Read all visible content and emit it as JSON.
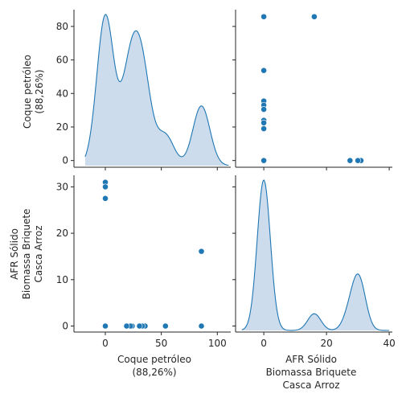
{
  "chart_data": {
    "type": "pairplot",
    "variables": [
      [
        "Coque petróleo",
        "(88,26%)"
      ],
      [
        "AFR Sólido",
        "Biomassa Briquete",
        "Casca Arroz"
      ]
    ],
    "colors": {
      "point": "#1f77b4",
      "kde_line": "#1f77b4",
      "kde_fill": "#c6d8ea"
    },
    "grid": false,
    "axes": {
      "var0": {
        "range": [
          -28,
          112
        ],
        "ticks": [
          0,
          50,
          100
        ],
        "row_range": [
          -4,
          90
        ],
        "row_ticks": [
          0,
          20,
          40,
          60,
          80
        ]
      },
      "var1": {
        "range": [
          -9,
          41
        ],
        "ticks": [
          0,
          20,
          40
        ],
        "row_range": [
          -1.3,
          32.5
        ],
        "row_ticks": [
          0,
          10,
          20,
          30
        ]
      }
    },
    "points": [
      {
        "coque": 85.8,
        "afr": 0
      },
      {
        "coque": 53.7,
        "afr": 0
      },
      {
        "coque": 35.5,
        "afr": 0
      },
      {
        "coque": 33.0,
        "afr": 0
      },
      {
        "coque": 30.5,
        "afr": 0
      },
      {
        "coque": 24.0,
        "afr": 0
      },
      {
        "coque": 22.5,
        "afr": 0
      },
      {
        "coque": 19.0,
        "afr": 0
      },
      {
        "coque": 0.0,
        "afr": 0
      },
      {
        "coque": 85.8,
        "afr": 16.1
      },
      {
        "coque": 0.0,
        "afr": 27.5
      },
      {
        "coque": 0.0,
        "afr": 30.2
      },
      {
        "coque": 0.0,
        "afr": 31.0
      },
      {
        "coque": 0.0,
        "afr": 30.0
      }
    ]
  }
}
